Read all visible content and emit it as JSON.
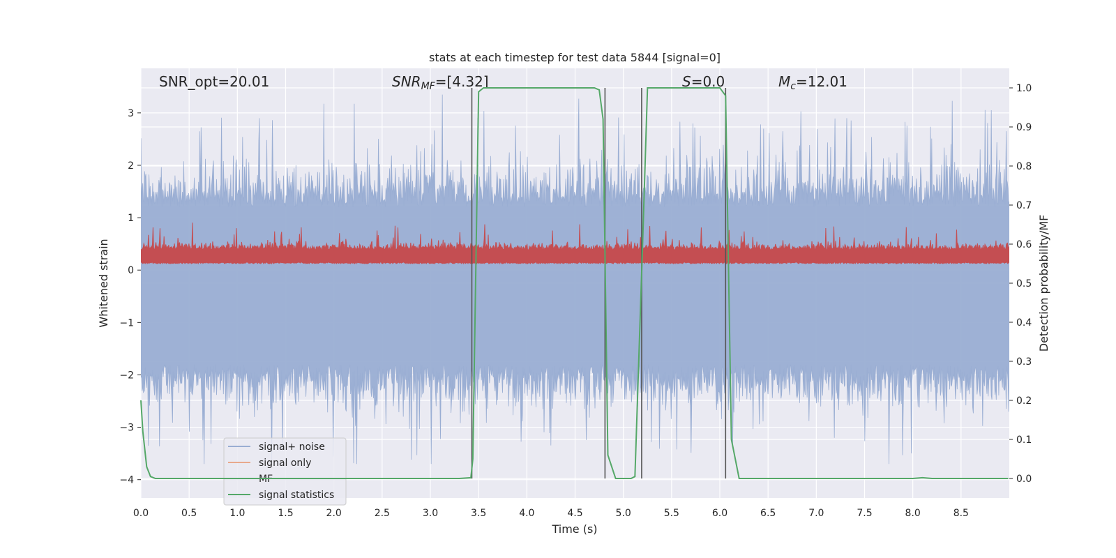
{
  "chart_data": {
    "type": "line",
    "title": "stats at each timestep for test data 5844 [signal=0]",
    "xlabel": "Time (s)",
    "ylabel": "Whitened strain",
    "ylabel_right": "Detection probability/MF",
    "xlim": [
      0.0,
      9.0
    ],
    "ylim": [
      -4.35,
      3.85
    ],
    "ylim_right": [
      -0.05,
      1.05
    ],
    "xticks": [
      "0.0",
      "0.5",
      "1.0",
      "1.5",
      "2.0",
      "2.5",
      "3.0",
      "3.5",
      "4.0",
      "4.5",
      "5.0",
      "5.5",
      "6.0",
      "6.5",
      "7.0",
      "7.5",
      "8.0",
      "8.5"
    ],
    "yticks": [
      "3",
      "2",
      "1",
      "0",
      "−1",
      "−2",
      "−3",
      "−4"
    ],
    "yticks_right": [
      "1.0",
      "0.9",
      "0.8",
      "0.7",
      "0.6",
      "0.5",
      "0.4",
      "0.3",
      "0.2",
      "0.1",
      "0.0"
    ],
    "grid": true,
    "legend_position": "lower-left",
    "annotations": {
      "snr_opt": "SNR_opt=20.01",
      "snr_mf_prefix": "SNR",
      "snr_mf_sub": "MF",
      "snr_mf_suffix": "=[4.32]",
      "s_prefix": "S",
      "s_suffix": "=0.0",
      "mc_prefix": "M",
      "mc_sub": "c",
      "mc_suffix": "=12.01"
    },
    "vertical_lines_x": [
      3.43,
      4.81,
      5.19,
      6.06
    ],
    "series": [
      {
        "name": "signal+ noise",
        "color": "#9aaed3",
        "envelope": {
          "x_range": [
            0.0,
            9.0
          ],
          "min": -3.7,
          "max": 3.35
        }
      },
      {
        "name": "signal only",
        "color": "#e8a98c",
        "values": []
      },
      {
        "name": "MF",
        "color": "#c44e52",
        "axis": "right",
        "envelope": {
          "x_range": [
            0.0,
            9.0
          ],
          "min": 0.55,
          "max": 0.67
        }
      },
      {
        "name": "signal statistics",
        "color": "#55a868",
        "axis": "right",
        "x": [
          0.0,
          0.02,
          0.06,
          0.1,
          0.15,
          0.2,
          0.5,
          1.0,
          1.5,
          2.0,
          2.5,
          3.0,
          3.3,
          3.42,
          3.44,
          3.5,
          3.55,
          3.6,
          4.0,
          4.5,
          4.7,
          4.75,
          4.79,
          4.84,
          4.92,
          5.0,
          5.08,
          5.12,
          5.2,
          5.25,
          5.3,
          5.5,
          5.9,
          6.0,
          6.06,
          6.12,
          6.2,
          6.5,
          7.0,
          7.5,
          7.8,
          8.0,
          8.1,
          8.2,
          8.5,
          8.99
        ],
        "values": [
          0.2,
          0.12,
          0.03,
          0.005,
          0.0,
          0.0,
          0.0,
          0.0,
          0.0,
          0.0,
          0.0,
          0.0,
          0.0,
          0.002,
          0.05,
          0.99,
          1.0,
          1.0,
          1.0,
          1.0,
          1.0,
          0.995,
          0.92,
          0.06,
          0.0,
          0.0,
          0.0,
          0.005,
          0.6,
          1.0,
          1.0,
          1.0,
          1.0,
          1.0,
          0.98,
          0.1,
          0.0,
          0.0,
          0.0,
          0.0,
          0.0,
          0.0,
          0.002,
          0.0,
          0.0,
          0.0
        ]
      }
    ]
  }
}
